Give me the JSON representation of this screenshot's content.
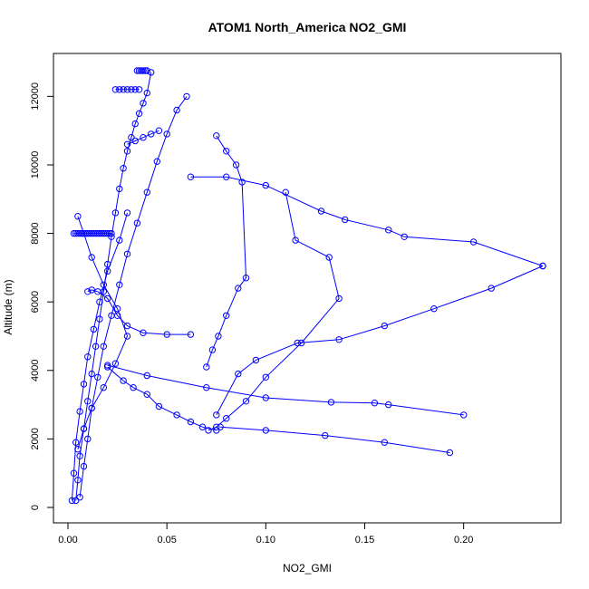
{
  "chart_data": {
    "type": "line",
    "title": "ATOM1 North_America NO2_GMI",
    "xlabel": "NO2_GMI",
    "ylabel": "Altitude (m)",
    "xlim": [
      0,
      0.24
    ],
    "ylim": [
      0,
      12750
    ],
    "x_ticks": [
      0.0,
      0.05,
      0.1,
      0.15,
      0.2
    ],
    "x_tick_labels": [
      "0.00",
      "0.05",
      "0.10",
      "0.15",
      "0.20"
    ],
    "y_ticks": [
      0,
      2000,
      4000,
      6000,
      8000,
      10000,
      12000
    ],
    "y_tick_labels": [
      "0",
      "2000",
      "4000",
      "6000",
      "8000",
      "10000",
      "12000"
    ],
    "series_color": "#0000ff",
    "marker": "open-circle",
    "grid": false,
    "series": [
      {
        "x": [
          0.004,
          0.005,
          0.006,
          0.008,
          0.01,
          0.012,
          0.014,
          0.016,
          0.018,
          0.02,
          0.022,
          0.024,
          0.026,
          0.028,
          0.03,
          0.032,
          0.034,
          0.036,
          0.038,
          0.04,
          0.042
        ],
        "y": [
          200,
          800,
          1500,
          2300,
          3100,
          3900,
          4700,
          5500,
          6300,
          7100,
          7900,
          8600,
          9300,
          9900,
          10400,
          10800,
          11200,
          11500,
          11800,
          12100,
          12700
        ]
      },
      {
        "x": [
          0.006,
          0.008,
          0.01,
          0.012,
          0.015,
          0.018,
          0.022,
          0.026,
          0.03,
          0.035,
          0.04,
          0.045,
          0.05,
          0.055,
          0.06
        ],
        "y": [
          300,
          1200,
          2000,
          2900,
          3800,
          4700,
          5600,
          6500,
          7400,
          8300,
          9200,
          10100,
          10900,
          11600,
          12000
        ]
      },
      {
        "x": [
          0.24,
          0.214,
          0.185,
          0.16,
          0.137,
          0.116,
          0.095,
          0.086,
          0.075
        ],
        "y": [
          7050,
          6400,
          5800,
          5300,
          4900,
          4800,
          4300,
          3900,
          2700
        ]
      },
      {
        "x": [
          0.075,
          0.08,
          0.085,
          0.088,
          0.09,
          0.086,
          0.08,
          0.076,
          0.073,
          0.07
        ],
        "y": [
          10850,
          10400,
          10000,
          9500,
          6700,
          6400,
          5600,
          5000,
          4600,
          4100
        ]
      },
      {
        "x": [
          0.11,
          0.115,
          0.132,
          0.137,
          0.118,
          0.1,
          0.09,
          0.08,
          0.075,
          0.071
        ],
        "y": [
          9200,
          7800,
          7300,
          6100,
          4800,
          3800,
          3100,
          2600,
          2350,
          2250
        ]
      },
      {
        "x": [
          0.2,
          0.162,
          0.155,
          0.133,
          0.1,
          0.07,
          0.04,
          0.02
        ],
        "y": [
          2700,
          3000,
          3050,
          3070,
          3200,
          3500,
          3850,
          4150
        ]
      },
      {
        "x": [
          0.193,
          0.16,
          0.13,
          0.1,
          0.077
        ],
        "y": [
          1600,
          1900,
          2100,
          2250,
          2350
        ]
      },
      {
        "x": [
          0.062,
          0.08,
          0.1,
          0.128,
          0.14,
          0.162,
          0.17,
          0.205,
          0.24
        ],
        "y": [
          9650,
          9650,
          9400,
          8650,
          8400,
          8100,
          7900,
          7750,
          7050
        ]
      },
      {
        "x": [
          0.01,
          0.012,
          0.015,
          0.02,
          0.025,
          0.03,
          0.038,
          0.05,
          0.062
        ],
        "y": [
          6300,
          6350,
          6300,
          6100,
          5600,
          5300,
          5100,
          5050,
          5050
        ]
      },
      {
        "x": [
          0.02,
          0.028,
          0.033,
          0.04,
          0.046,
          0.055,
          0.062,
          0.068,
          0.075
        ],
        "y": [
          4100,
          3700,
          3500,
          3300,
          2950,
          2700,
          2500,
          2350,
          2250
        ]
      },
      {
        "x": [
          0.003,
          0.004,
          0.005,
          0.006,
          0.007,
          0.008,
          0.009,
          0.01,
          0.011,
          0.012,
          0.013,
          0.014,
          0.015,
          0.016,
          0.017,
          0.018,
          0.019,
          0.02,
          0.021,
          0.022
        ],
        "y": [
          8000,
          8000,
          8000,
          8000,
          8000,
          8000,
          8000,
          8000,
          8000,
          8000,
          8000,
          8000,
          8000,
          8000,
          8000,
          8000,
          8000,
          8000,
          8000,
          8000
        ]
      },
      {
        "x": [
          0.024,
          0.026,
          0.028,
          0.03,
          0.032,
          0.034,
          0.036
        ],
        "y": [
          12200,
          12200,
          12200,
          12200,
          12200,
          12200,
          12200
        ]
      },
      {
        "x": [
          0.035,
          0.036,
          0.037,
          0.038,
          0.039,
          0.04
        ],
        "y": [
          12750,
          12750,
          12750,
          12750,
          12750,
          12750
        ]
      },
      {
        "x": [
          0.03,
          0.034,
          0.038,
          0.042,
          0.046
        ],
        "y": [
          10600,
          10700,
          10800,
          10900,
          11000
        ]
      },
      {
        "x": [
          0.005,
          0.008,
          0.012,
          0.018,
          0.024,
          0.03,
          0.025,
          0.018,
          0.012,
          0.008,
          0.005
        ],
        "y": [
          1700,
          2300,
          2900,
          3500,
          4200,
          5000,
          5800,
          6500,
          7300,
          8000,
          8500
        ]
      },
      {
        "x": [
          0.002,
          0.003,
          0.004,
          0.006,
          0.008,
          0.01,
          0.013,
          0.016,
          0.02,
          0.026,
          0.03
        ],
        "y": [
          200,
          1000,
          1900,
          2800,
          3600,
          4400,
          5200,
          6000,
          6900,
          7800,
          8600
        ]
      }
    ]
  }
}
